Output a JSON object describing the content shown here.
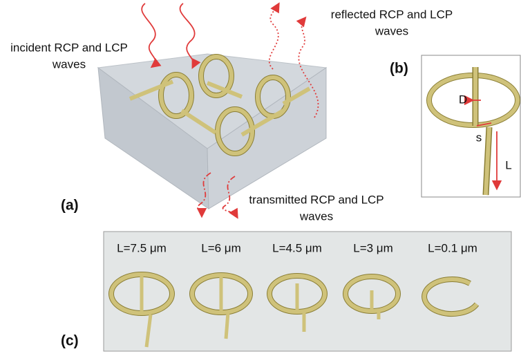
{
  "panel_a": {
    "label": "(a)",
    "incident": [
      "incident RCP and LCP",
      "waves"
    ],
    "reflected": [
      "reflected RCP and LCP",
      "waves"
    ],
    "transmitted": [
      "transmitted RCP and LCP",
      "waves"
    ]
  },
  "panel_b": {
    "label": "(b)",
    "dimensions": [
      "D",
      "s",
      "L"
    ]
  },
  "panel_c": {
    "label": "(c)",
    "lengths": [
      "L=7.5 μm",
      "L=6 μm",
      "L=4.5 μm",
      "L=3 μm",
      "L=0.1 μm"
    ]
  }
}
